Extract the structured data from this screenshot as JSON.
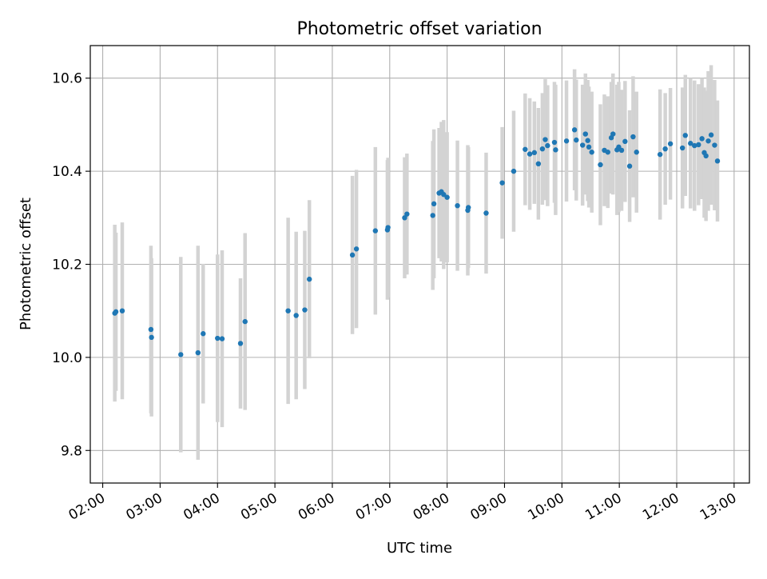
{
  "chart_data": {
    "type": "scatter",
    "title": "Photometric offset variation",
    "xlabel": "UTC time",
    "ylabel": "Photometric offset",
    "x_unit": "hours UTC",
    "xlim": [
      "01:47",
      "13:16"
    ],
    "ylim": [
      9.73,
      10.67
    ],
    "x_ticks": [
      "02:00",
      "03:00",
      "04:00",
      "05:00",
      "06:00",
      "07:00",
      "08:00",
      "09:00",
      "10:00",
      "11:00",
      "12:00",
      "13:00"
    ],
    "y_ticks": [
      "9.8",
      "10.0",
      "10.2",
      "10.4",
      "10.6"
    ],
    "grid": true,
    "legend": "none",
    "colors": {
      "points": "#1f77b4",
      "error_bars": "#d3d3d3",
      "grid": "#b0b0b0"
    },
    "series": [
      {
        "x": [
          2.21,
          2.23,
          2.34,
          2.84,
          2.85,
          3.36,
          3.66,
          3.75,
          4.0,
          4.08,
          4.4,
          4.48,
          5.23,
          5.37,
          5.52,
          5.6,
          6.35,
          6.42,
          6.75,
          6.96,
          6.97,
          7.26,
          7.3,
          7.75,
          7.77,
          7.86,
          7.9,
          7.94,
          8.0,
          8.18,
          8.36,
          8.37,
          8.68,
          8.96,
          9.16,
          9.36,
          9.44,
          9.52,
          9.59,
          9.66,
          9.71,
          9.75,
          9.87,
          9.89,
          10.08,
          10.22,
          10.25,
          10.36,
          10.41,
          10.45,
          10.47,
          10.52,
          10.67,
          10.74,
          10.8,
          10.86,
          10.89,
          10.96,
          10.99,
          11.04,
          11.1,
          11.18,
          11.24,
          11.3,
          11.71,
          11.8,
          11.89,
          12.1,
          12.15,
          12.24,
          12.31,
          12.38,
          12.44,
          12.48,
          12.51,
          12.55,
          12.6,
          12.66,
          12.71
        ],
        "y": [
          10.095,
          10.098,
          10.1,
          10.06,
          10.043,
          10.006,
          10.01,
          10.051,
          10.041,
          10.04,
          10.03,
          10.077,
          10.1,
          10.09,
          10.102,
          10.168,
          10.22,
          10.233,
          10.272,
          10.274,
          10.279,
          10.3,
          10.308,
          10.305,
          10.33,
          10.353,
          10.356,
          10.35,
          10.344,
          10.326,
          10.316,
          10.322,
          10.31,
          10.375,
          10.4,
          10.447,
          10.437,
          10.44,
          10.416,
          10.448,
          10.468,
          10.455,
          10.462,
          10.446,
          10.465,
          10.489,
          10.467,
          10.456,
          10.48,
          10.466,
          10.452,
          10.441,
          10.414,
          10.445,
          10.441,
          10.472,
          10.48,
          10.446,
          10.452,
          10.445,
          10.464,
          10.411,
          10.474,
          10.441,
          10.436,
          10.448,
          10.459,
          10.45,
          10.477,
          10.46,
          10.455,
          10.457,
          10.47,
          10.44,
          10.433,
          10.465,
          10.478,
          10.456,
          10.422
        ],
        "yerr": [
          0.19,
          0.17,
          0.19,
          0.18,
          0.17,
          0.21,
          0.23,
          0.15,
          0.18,
          0.19,
          0.14,
          0.19,
          0.2,
          0.18,
          0.17,
          0.17,
          0.17,
          0.17,
          0.18,
          0.15,
          0.15,
          0.13,
          0.13,
          0.16,
          0.16,
          0.14,
          0.15,
          0.16,
          0.14,
          0.14,
          0.14,
          0.13,
          0.13,
          0.12,
          0.13,
          0.12,
          0.12,
          0.11,
          0.12,
          0.12,
          0.13,
          0.13,
          0.13,
          0.14,
          0.13,
          0.13,
          0.13,
          0.13,
          0.13,
          0.13,
          0.13,
          0.13,
          0.13,
          0.12,
          0.12,
          0.12,
          0.13,
          0.14,
          0.14,
          0.13,
          0.13,
          0.12,
          0.13,
          0.13,
          0.14,
          0.12,
          0.12,
          0.13,
          0.13,
          0.14,
          0.14,
          0.13,
          0.13,
          0.14,
          0.14,
          0.15,
          0.15,
          0.14,
          0.13
        ]
      }
    ]
  }
}
